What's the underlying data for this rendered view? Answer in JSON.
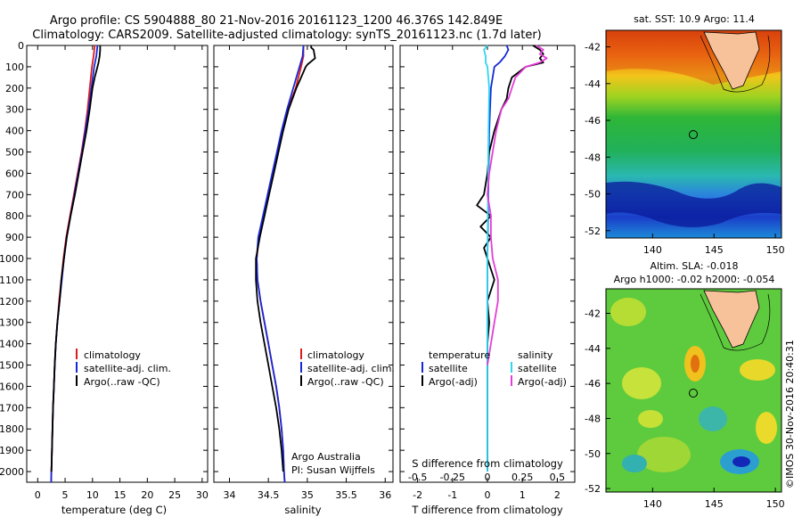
{
  "header": {
    "title_line1": "Argo profile: CS 5904888_80 21-Nov-2016 20161123_1200 46.376S 142.849E",
    "title_line2": "Climatology: CARS2009. Satellite-adjusted climatology: synTS_20161123.nc (1.7d later)"
  },
  "colors": {
    "climatology": "#e0191b",
    "satellite_adj": "#1428d8",
    "argo": "#000000",
    "satellite_s": "#2fd6ee",
    "argo_s": "#e43ed8"
  },
  "chart_data": [
    {
      "type": "line",
      "ylabel": "",
      "xlabel": "temperature (deg C)",
      "xlim": [
        -2,
        31
      ],
      "ylim": [
        2050,
        0
      ],
      "xticks": [
        0,
        5,
        10,
        15,
        20,
        25,
        30
      ],
      "yticks": [
        0,
        100,
        200,
        300,
        400,
        500,
        600,
        700,
        800,
        900,
        1000,
        1100,
        1200,
        1300,
        1400,
        1500,
        1600,
        1700,
        1800,
        1900,
        2000
      ],
      "legend": [
        "climatology",
        "satellite-adj. clim.",
        "Argo(..raw -QC)"
      ],
      "series": [
        {
          "name": "climatology",
          "color": "#e0191b",
          "depth": [
            0,
            50,
            100,
            200,
            300,
            400,
            500,
            600,
            700,
            800,
            900,
            1000,
            1100,
            1200,
            1300,
            1400,
            1500,
            1600,
            1700,
            1800,
            1900,
            2000,
            2050
          ],
          "values": [
            10.4,
            10.2,
            9.9,
            9.5,
            9.1,
            8.6,
            8.0,
            7.3,
            6.6,
            5.9,
            5.2,
            4.7,
            4.3,
            3.9,
            3.6,
            3.3,
            3.1,
            2.95,
            2.8,
            2.7,
            2.6,
            2.5,
            2.45
          ]
        },
        {
          "name": "satellite-adj. clim.",
          "color": "#1428d8",
          "depth": [
            0,
            50,
            100,
            200,
            300,
            400,
            500,
            600,
            700,
            800,
            900,
            1000,
            1100,
            1200,
            1300,
            1400,
            1500,
            1600,
            1700,
            1800,
            1900,
            2000,
            2050
          ],
          "values": [
            10.9,
            10.7,
            10.3,
            9.8,
            9.3,
            8.7,
            8.1,
            7.4,
            6.7,
            6.0,
            5.3,
            4.8,
            4.4,
            4.0,
            3.6,
            3.3,
            3.1,
            2.95,
            2.8,
            2.7,
            2.6,
            2.5,
            2.45
          ]
        },
        {
          "name": "Argo(..raw -QC)",
          "color": "#000000",
          "depth": [
            0,
            20,
            50,
            80,
            100,
            150,
            200,
            300,
            400,
            500,
            600,
            700,
            800,
            900,
            1000,
            1100,
            1200,
            1300,
            1400,
            1500,
            1600,
            1700,
            1800,
            1900,
            2000
          ],
          "values": [
            11.4,
            11.4,
            11.3,
            11.1,
            10.9,
            10.4,
            10.0,
            9.5,
            8.9,
            8.2,
            7.5,
            6.8,
            6.0,
            5.3,
            4.8,
            4.3,
            4.0,
            3.6,
            3.3,
            3.1,
            2.95,
            2.8,
            2.7,
            2.6,
            2.5
          ]
        }
      ]
    },
    {
      "type": "line",
      "ylabel": "",
      "xlabel": "salinity",
      "xlim": [
        33.8,
        36.1
      ],
      "ylim": [
        2050,
        0
      ],
      "xticks": [
        34,
        34.5,
        35,
        35.5,
        36
      ],
      "legend": [
        "climatology",
        "satellite-adj. clim.",
        "Argo(..raw -QC)"
      ],
      "annotation": [
        "Argo Australia",
        "PI: Susan Wijffels"
      ],
      "series": [
        {
          "name": "climatology",
          "color": "#e0191b",
          "depth": [
            0,
            50,
            100,
            200,
            300,
            400,
            500,
            600,
            700,
            800,
            900,
            1000,
            1100,
            1200,
            1300,
            1400,
            1500,
            1600,
            1700,
            1800,
            1900,
            2000,
            2050
          ],
          "values": [
            34.95,
            34.95,
            34.92,
            34.85,
            34.75,
            34.68,
            34.62,
            34.56,
            34.5,
            34.45,
            34.38,
            34.35,
            34.36,
            34.4,
            34.45,
            34.5,
            34.55,
            34.6,
            34.64,
            34.67,
            34.69,
            34.7,
            34.71
          ]
        },
        {
          "name": "satellite-adj. clim.",
          "color": "#1428d8",
          "depth": [
            0,
            50,
            100,
            200,
            300,
            400,
            500,
            600,
            700,
            800,
            900,
            1000,
            1100,
            1200,
            1300,
            1400,
            1500,
            1600,
            1700,
            1800,
            1900,
            2000,
            2050
          ],
          "values": [
            34.95,
            34.94,
            34.9,
            34.82,
            34.74,
            34.67,
            34.61,
            34.55,
            34.49,
            34.43,
            34.37,
            34.35,
            34.36,
            34.4,
            34.45,
            34.5,
            34.55,
            34.6,
            34.64,
            34.67,
            34.69,
            34.7,
            34.71
          ]
        },
        {
          "name": "Argo(..raw -QC)",
          "color": "#000000",
          "depth": [
            0,
            10,
            20,
            60,
            90,
            100,
            150,
            200,
            300,
            400,
            500,
            600,
            700,
            800,
            900,
            1000,
            1100,
            1200,
            1300,
            1400,
            1500,
            1600,
            1700,
            1800,
            1900,
            2000
          ],
          "values": [
            35.05,
            35.05,
            35.08,
            35.1,
            35.0,
            34.98,
            34.92,
            34.86,
            34.76,
            34.69,
            34.63,
            34.57,
            34.51,
            34.45,
            34.39,
            34.34,
            34.34,
            34.36,
            34.4,
            34.45,
            34.5,
            34.55,
            34.6,
            34.64,
            34.67,
            34.69
          ]
        }
      ]
    },
    {
      "type": "line",
      "ylabel": "",
      "xlabel": "T difference from climatology",
      "xlabel_top": "S difference from climatology",
      "xlim": [
        -2.5,
        2.5
      ],
      "ylim": [
        2050,
        0
      ],
      "xticks": [
        -2,
        -1,
        0,
        1,
        2
      ],
      "xticks_s": [
        "-0.5",
        "-0.25",
        "0",
        "0.25",
        "0.5"
      ],
      "xticks_s_pos": [
        -2,
        -1,
        0,
        1,
        2
      ],
      "legend": [
        "temperature",
        "satellite",
        "Argo(-adj)",
        "salinity",
        "satellite",
        "Argo(-adj)"
      ],
      "series": [
        {
          "name": "satellite",
          "color": "#1428d8",
          "depth": [
            0,
            20,
            50,
            80,
            100,
            200,
            400,
            600,
            800,
            1000,
            1200,
            1400,
            1600,
            1800,
            2000
          ],
          "values": [
            0.55,
            0.6,
            0.5,
            0.35,
            0.2,
            0.1,
            0.05,
            0.03,
            0.02,
            0.0,
            0.0,
            0.0,
            0.0,
            0.0,
            0.0
          ]
        },
        {
          "name": "Argo(-adj)",
          "color": "#000000",
          "depth": [
            0,
            20,
            40,
            60,
            80,
            100,
            150,
            200,
            250,
            300,
            400,
            500,
            600,
            700,
            750,
            800,
            850,
            900,
            950,
            1000,
            1050,
            1100,
            1150,
            1200,
            1300,
            1400,
            1500,
            1600,
            1700,
            1800,
            1900,
            2000
          ],
          "values": [
            1.3,
            1.5,
            1.6,
            1.5,
            1.6,
            1.1,
            0.7,
            0.6,
            0.55,
            0.4,
            0.2,
            0.05,
            0.0,
            -0.1,
            -0.3,
            0.1,
            -0.2,
            0.1,
            -0.1,
            0.0,
            0.1,
            0.2,
            0.1,
            0.0,
            0.05,
            0.0,
            0.0,
            0.0,
            0.0,
            0.0,
            0.0,
            0.0
          ]
        },
        {
          "name": "satellite",
          "color": "#2fd6ee",
          "depth": [
            0,
            20,
            50,
            80,
            100,
            200,
            400,
            600,
            800,
            1000,
            1200,
            1400,
            1600,
            1800,
            2000
          ],
          "values": [
            0.0,
            -0.1,
            -0.05,
            -0.05,
            0.0,
            0.05,
            0.03,
            0.02,
            0.01,
            0.0,
            0.0,
            0.0,
            0.0,
            0.0,
            0.0
          ]
        },
        {
          "name": "Argo(-adj)",
          "color": "#e43ed8",
          "depth": [
            0,
            20,
            40,
            60,
            80,
            100,
            150,
            200,
            250,
            300,
            400,
            500,
            600,
            700,
            800,
            900,
            1000,
            1100,
            1200,
            1300,
            1400,
            1500
          ],
          "values": [
            1.4,
            1.6,
            1.5,
            1.7,
            1.5,
            1.1,
            0.8,
            0.7,
            0.6,
            0.4,
            0.25,
            0.15,
            0.05,
            0.0,
            0.1,
            0.1,
            0.15,
            0.3,
            0.3,
            0.2,
            0.1,
            0.0
          ]
        }
      ]
    }
  ],
  "maps": {
    "sst": {
      "title": "sat. SST: 10.9 Argo: 11.4",
      "xticks": [
        140,
        145,
        150
      ],
      "yticks": [
        -42,
        -44,
        -46,
        -48,
        -50,
        -52
      ]
    },
    "sla": {
      "title_line1": "Altim. SLA: -0.018",
      "title_line2": "Argo h1000: -0.02 h2000: -0.054",
      "xticks": [
        140,
        145,
        150
      ],
      "yticks": [
        -42,
        -44,
        -46,
        -48,
        -50,
        -52
      ]
    },
    "stamp": "©IMOS 30-Nov-2016 20:40:31"
  }
}
